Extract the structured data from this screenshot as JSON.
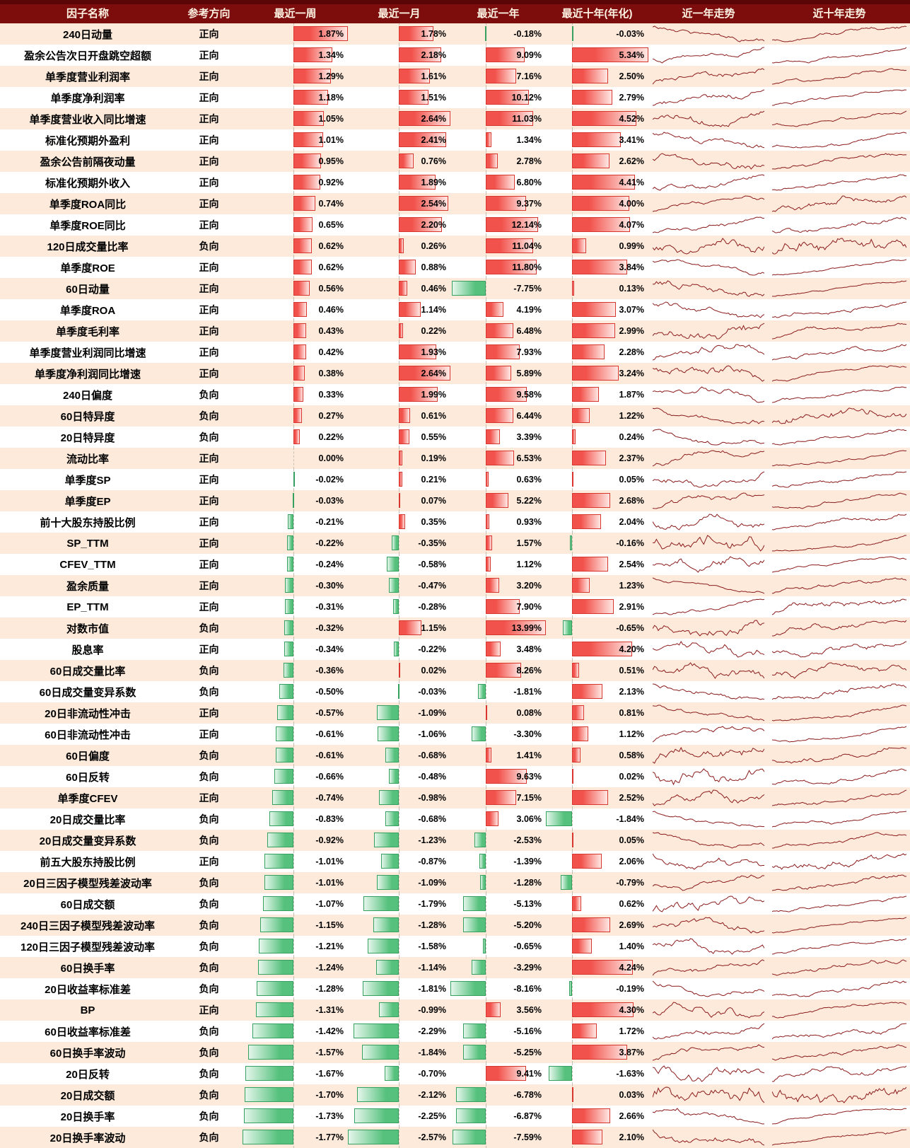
{
  "colors": {
    "header_bg": "#7d0c0c",
    "header_top": "#5a0606",
    "header_text": "#fdf2e2",
    "row_alt_bg": "#fdeadb",
    "row_bg": "#ffffff",
    "pos_bar": "#f2524c",
    "pos_bar_border": "#d93630",
    "pos_bar_fade": "#ffe7e3",
    "neg_bar": "#56c17d",
    "neg_bar_border": "#36a05f",
    "neg_bar_fade": "#e4f6eb",
    "axis_line": "#c8beb2",
    "sparkline": "#8c1c1c"
  },
  "chart_data": {
    "type": "table",
    "columns": [
      "因子名称",
      "参考方向",
      "最近一周",
      "最近一月",
      "最近一年",
      "最近十年(年化)",
      "近一年走势",
      "近十年走势"
    ],
    "value_format": "percent, 2 decimals",
    "bar_style": "excel-databar, proportional axis, positive red right, negative green left",
    "rows": [
      [
        "240日动量",
        "正向",
        1.87,
        1.78,
        -0.18,
        -0.03
      ],
      [
        "盈余公告次日开盘跳空超额",
        "正向",
        1.34,
        2.18,
        9.09,
        5.34
      ],
      [
        "单季度营业利润率",
        "正向",
        1.29,
        1.61,
        7.16,
        2.5
      ],
      [
        "单季度净利润率",
        "正向",
        1.18,
        1.51,
        10.12,
        2.79
      ],
      [
        "单季度营业收入同比增速",
        "正向",
        1.05,
        2.64,
        11.03,
        4.52
      ],
      [
        "标准化预期外盈利",
        "正向",
        1.01,
        2.41,
        1.34,
        3.41
      ],
      [
        "盈余公告前隔夜动量",
        "正向",
        0.95,
        0.76,
        2.78,
        2.62
      ],
      [
        "标准化预期外收入",
        "正向",
        0.92,
        1.89,
        6.8,
        4.41
      ],
      [
        "单季度ROA同比",
        "正向",
        0.74,
        2.54,
        9.37,
        4.0
      ],
      [
        "单季度ROE同比",
        "正向",
        0.65,
        2.2,
        12.14,
        4.07
      ],
      [
        "120日成交量比率",
        "负向",
        0.62,
        0.26,
        11.04,
        0.99
      ],
      [
        "单季度ROE",
        "正向",
        0.62,
        0.88,
        11.8,
        3.84
      ],
      [
        "60日动量",
        "正向",
        0.56,
        0.46,
        -7.75,
        0.13
      ],
      [
        "单季度ROA",
        "正向",
        0.46,
        1.14,
        4.19,
        3.07
      ],
      [
        "单季度毛利率",
        "正向",
        0.43,
        0.22,
        6.48,
        2.99
      ],
      [
        "单季度营业利润同比增速",
        "正向",
        0.42,
        1.93,
        7.93,
        2.28
      ],
      [
        "单季度净利润同比增速",
        "正向",
        0.38,
        2.64,
        5.89,
        3.24
      ],
      [
        "240日偏度",
        "负向",
        0.33,
        1.99,
        9.58,
        1.87
      ],
      [
        "60日特异度",
        "负向",
        0.27,
        0.61,
        6.44,
        1.22
      ],
      [
        "20日特异度",
        "负向",
        0.22,
        0.55,
        3.39,
        0.24
      ],
      [
        "流动比率",
        "正向",
        0.0,
        0.19,
        6.53,
        2.37
      ],
      [
        "单季度SP",
        "正向",
        -0.02,
        0.21,
        0.63,
        0.05
      ],
      [
        "单季度EP",
        "正向",
        -0.03,
        0.07,
        5.22,
        2.68
      ],
      [
        "前十大股东持股比例",
        "正向",
        -0.21,
        0.35,
        0.93,
        2.04
      ],
      [
        "SP_TTM",
        "正向",
        -0.22,
        -0.35,
        1.57,
        -0.16
      ],
      [
        "CFEV_TTM",
        "正向",
        -0.24,
        -0.58,
        1.12,
        2.54
      ],
      [
        "盈余质量",
        "正向",
        -0.3,
        -0.47,
        3.2,
        1.23
      ],
      [
        "EP_TTM",
        "正向",
        -0.31,
        -0.28,
        7.9,
        2.91
      ],
      [
        "对数市值",
        "负向",
        -0.32,
        1.15,
        13.99,
        -0.65
      ],
      [
        "股息率",
        "正向",
        -0.34,
        -0.22,
        3.48,
        4.2
      ],
      [
        "60日成交量比率",
        "负向",
        -0.36,
        0.02,
        8.26,
        0.51
      ],
      [
        "60日成交量变异系数",
        "负向",
        -0.5,
        -0.03,
        -1.81,
        2.13
      ],
      [
        "20日非流动性冲击",
        "正向",
        -0.57,
        -1.09,
        0.08,
        0.81
      ],
      [
        "60日非流动性冲击",
        "正向",
        -0.61,
        -1.06,
        -3.3,
        1.12
      ],
      [
        "60日偏度",
        "负向",
        -0.61,
        -0.68,
        1.41,
        0.58
      ],
      [
        "60日反转",
        "负向",
        -0.66,
        -0.48,
        9.63,
        0.02
      ],
      [
        "单季度CFEV",
        "正向",
        -0.74,
        -0.98,
        7.15,
        2.52
      ],
      [
        "20日成交量比率",
        "负向",
        -0.83,
        -0.68,
        3.06,
        -1.84
      ],
      [
        "20日成交量变异系数",
        "负向",
        -0.92,
        -1.23,
        -2.53,
        0.05
      ],
      [
        "前五大股东持股比例",
        "正向",
        -1.01,
        -0.87,
        -1.39,
        2.06
      ],
      [
        "20日三因子模型残差波动率",
        "负向",
        -1.01,
        -1.09,
        -1.28,
        -0.79
      ],
      [
        "60日成交额",
        "负向",
        -1.07,
        -1.79,
        -5.13,
        0.62
      ],
      [
        "240日三因子模型残差波动率",
        "负向",
        -1.15,
        -1.28,
        -5.2,
        2.69
      ],
      [
        "120日三因子模型残差波动率",
        "负向",
        -1.21,
        -1.58,
        -0.65,
        1.4
      ],
      [
        "60日换手率",
        "负向",
        -1.24,
        -1.14,
        -3.29,
        4.24
      ],
      [
        "20日收益率标准差",
        "负向",
        -1.28,
        -1.81,
        -8.16,
        -0.19
      ],
      [
        "BP",
        "正向",
        -1.31,
        -0.99,
        3.56,
        4.3
      ],
      [
        "60日收益率标准差",
        "负向",
        -1.42,
        -2.29,
        -5.16,
        1.72
      ],
      [
        "60日换手率波动",
        "负向",
        -1.57,
        -1.84,
        -5.25,
        3.87
      ],
      [
        "20日反转",
        "负向",
        -1.67,
        -0.7,
        9.41,
        -1.63
      ],
      [
        "20日成交额",
        "负向",
        -1.7,
        -2.12,
        -6.78,
        0.03
      ],
      [
        "20日换手率",
        "负向",
        -1.73,
        -2.25,
        -6.87,
        2.66
      ],
      [
        "20日换手率波动",
        "负向",
        -1.77,
        -2.57,
        -7.59,
        2.1
      ]
    ]
  }
}
